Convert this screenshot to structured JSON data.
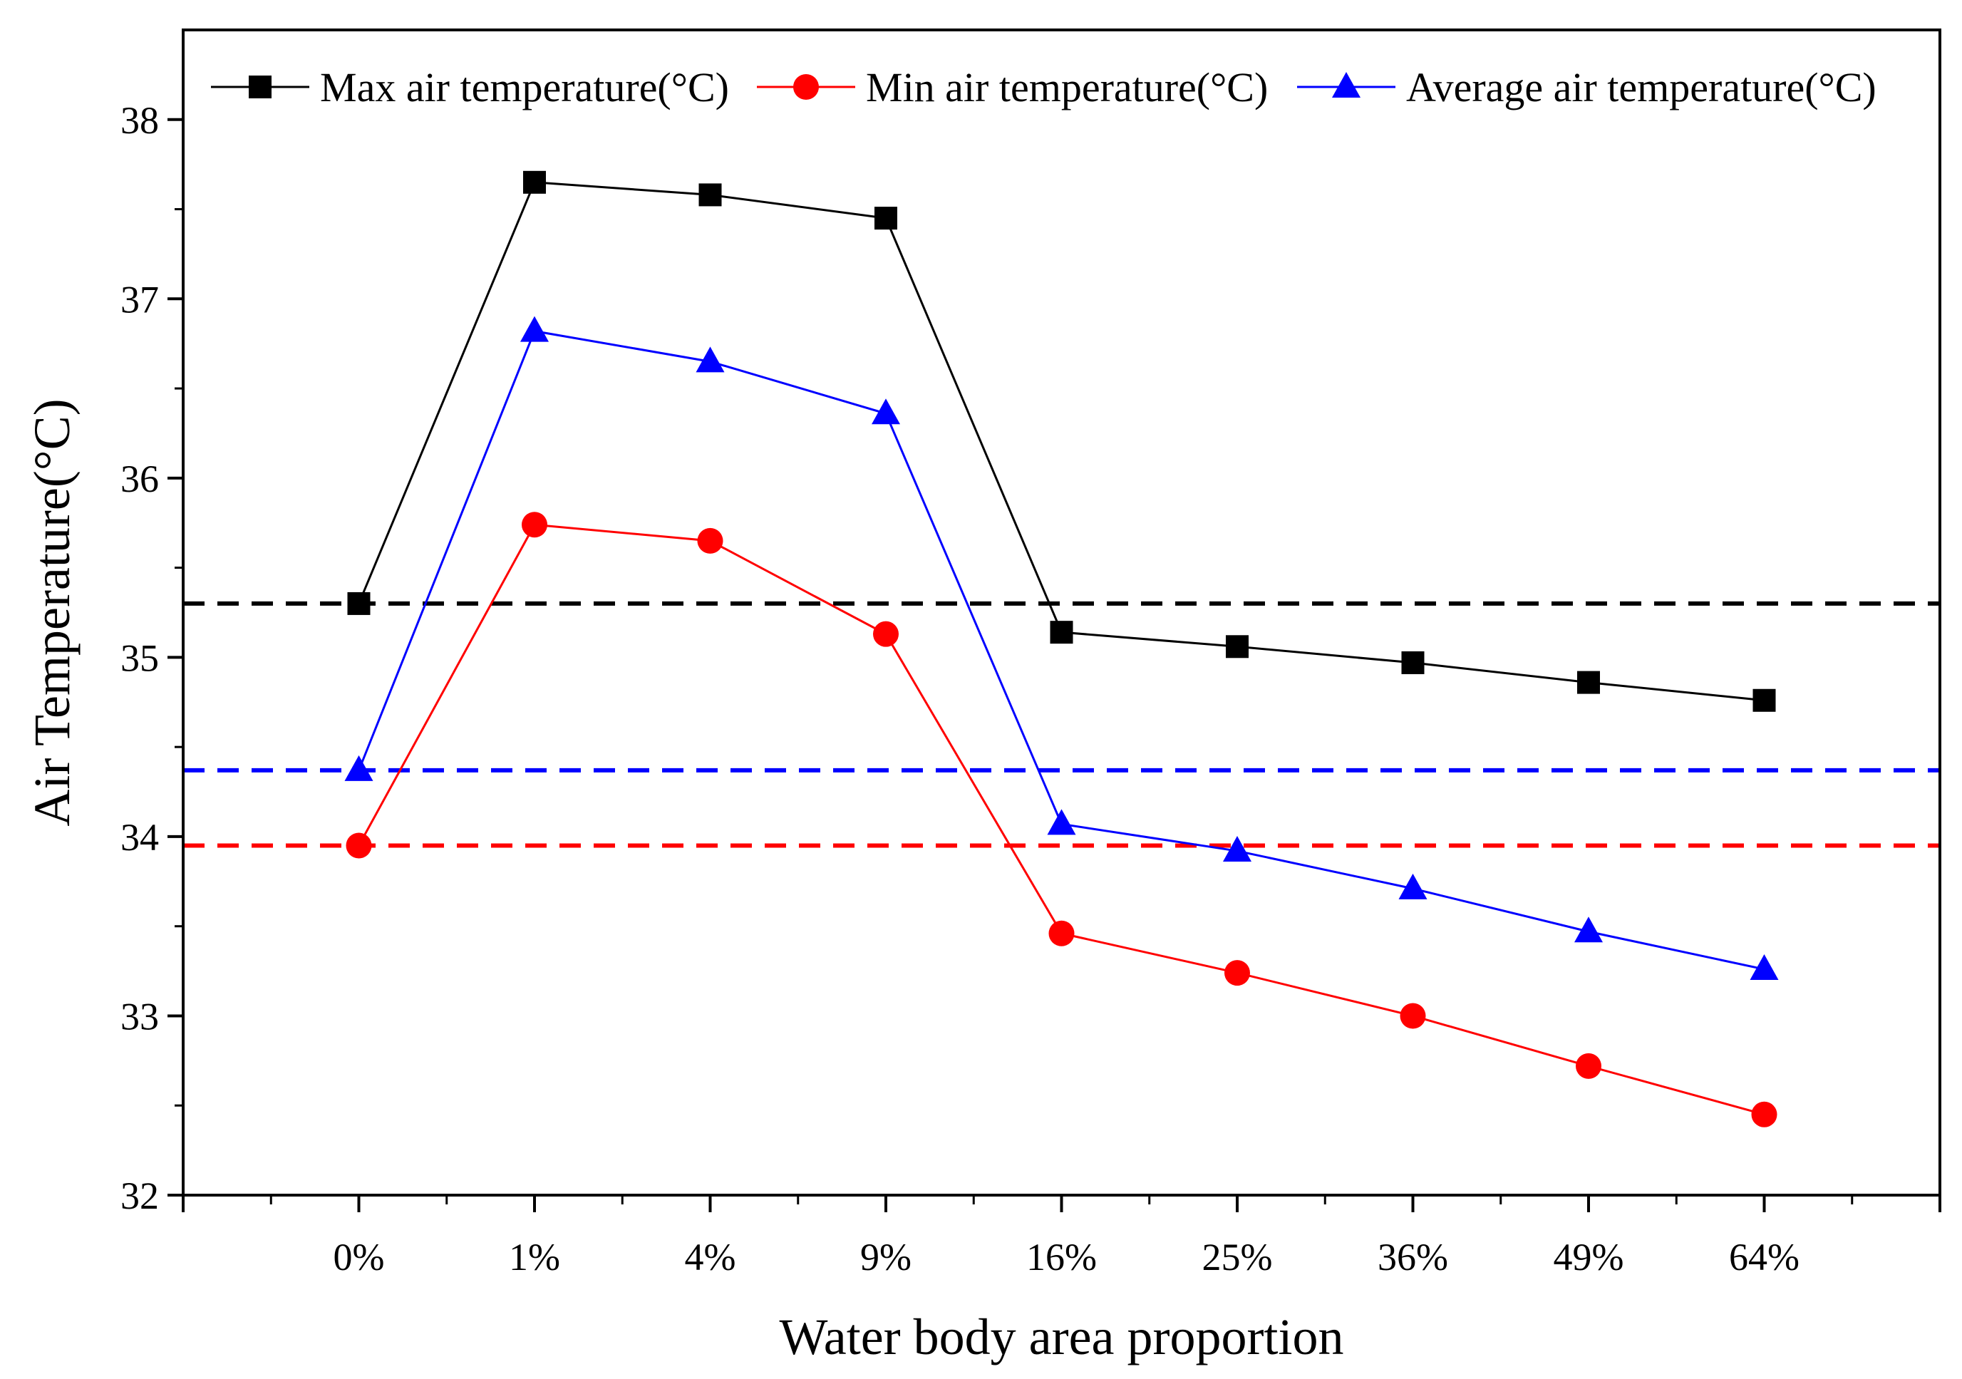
{
  "chart_data": {
    "type": "line",
    "title": "",
    "xlabel": "Water body area proportion",
    "ylabel": "Air Temperature(°C)",
    "categories": [
      "0%",
      "1%",
      "4%",
      "9%",
      "16%",
      "25%",
      "36%",
      "49%",
      "64%"
    ],
    "ylim": [
      32,
      38.5
    ],
    "yticks": [
      32,
      33,
      34,
      35,
      36,
      37,
      38
    ],
    "legend_position": "top",
    "series": [
      {
        "name": "Max air temperature(°C)",
        "color": "#000000",
        "marker": "square",
        "values": [
          35.3,
          37.65,
          37.58,
          37.45,
          35.14,
          35.06,
          34.97,
          34.86,
          34.76
        ]
      },
      {
        "name": "Min air temperature(°C)",
        "color": "#ff0000",
        "marker": "circle",
        "values": [
          33.95,
          35.74,
          35.65,
          35.13,
          33.46,
          33.24,
          33.0,
          32.72,
          32.45
        ]
      },
      {
        "name": "Average air temperature(°C)",
        "color": "#0000ff",
        "marker": "triangle",
        "values": [
          34.37,
          36.82,
          36.65,
          36.36,
          34.07,
          33.92,
          33.71,
          33.47,
          33.26
        ]
      }
    ],
    "reference_lines": [
      {
        "series": "Max air temperature(°C)",
        "value": 35.3,
        "color": "#000000",
        "style": "dashed"
      },
      {
        "series": "Average air temperature(°C)",
        "value": 34.37,
        "color": "#0000ff",
        "style": "dashed"
      },
      {
        "series": "Min air temperature(°C)",
        "value": 33.95,
        "color": "#ff0000",
        "style": "dashed"
      }
    ]
  }
}
